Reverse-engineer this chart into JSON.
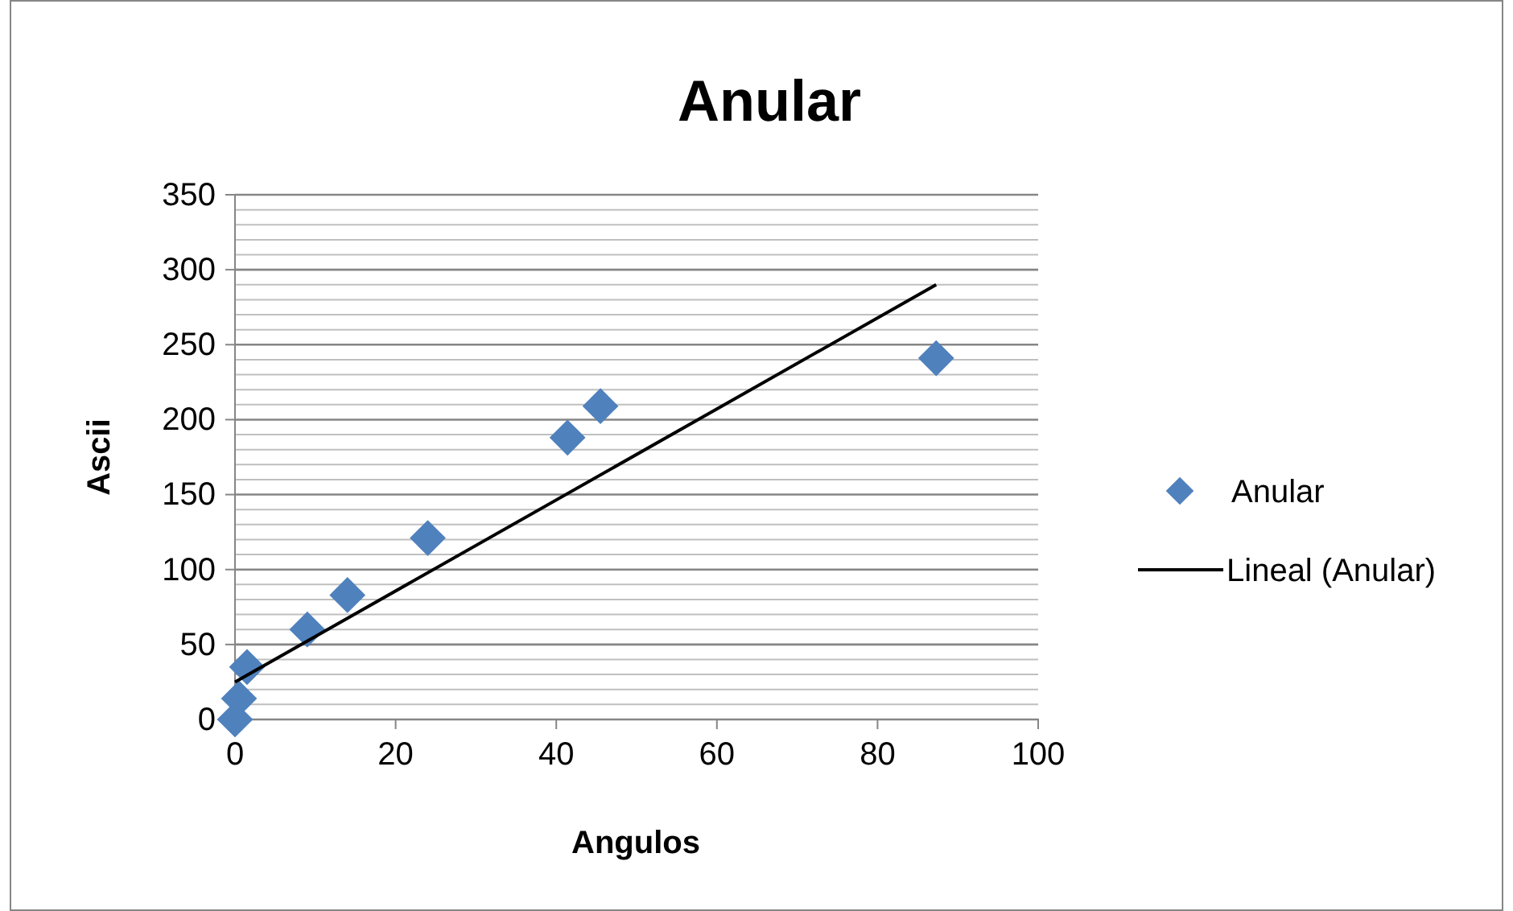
{
  "chart_data": {
    "type": "scatter",
    "title": "Anular",
    "xlabel": "Angulos",
    "ylabel": "Ascii",
    "xlim": [
      0,
      100
    ],
    "xticks": [
      0,
      20,
      40,
      60,
      80,
      100
    ],
    "ylim": [
      0,
      350
    ],
    "yticks": [
      0,
      {
        "value": 10,
        "label": null
      },
      {
        "value": 20,
        "label": null
      },
      {
        "value": 30,
        "label": null
      },
      {
        "value": 40,
        "label": null
      },
      50,
      {
        "value": 60,
        "label": null
      },
      {
        "value": 70,
        "label": null
      },
      {
        "value": 80,
        "label": null
      },
      {
        "value": 90,
        "label": null
      },
      100,
      {
        "value": 110,
        "label": null
      },
      {
        "value": 120,
        "label": null
      },
      {
        "value": 130,
        "label": null
      },
      {
        "value": 140,
        "label": null
      },
      150,
      {
        "value": 160,
        "label": null
      },
      {
        "value": 170,
        "label": null
      },
      {
        "value": 180,
        "label": null
      },
      {
        "value": 190,
        "label": null
      },
      200,
      {
        "value": 210,
        "label": null
      },
      {
        "value": 220,
        "label": null
      },
      {
        "value": 230,
        "label": null
      },
      {
        "value": 240,
        "label": null
      },
      250,
      {
        "value": 260,
        "label": null
      },
      {
        "value": 270,
        "label": null
      },
      {
        "value": 280,
        "label": null
      },
      {
        "value": 290,
        "label": null
      },
      300,
      {
        "value": 310,
        "label": null
      },
      {
        "value": 320,
        "label": null
      },
      {
        "value": 330,
        "label": null
      },
      {
        "value": 340,
        "label": null
      },
      350
    ],
    "grid": "y",
    "legend": "right",
    "series": [
      {
        "name": "Anular",
        "color": "#4f81bd",
        "marker": "diamond",
        "x": [
          0,
          0.5,
          1.5,
          9,
          14,
          24,
          41.4,
          45.5,
          87.3
        ],
        "values": [
          0,
          14,
          35,
          60,
          83,
          121,
          188,
          209,
          241
        ]
      },
      {
        "name": "Lineal (Anular)",
        "type": "line",
        "color": "#000000",
        "marker": "none",
        "line_style": "solid",
        "x": [
          0,
          87.3
        ],
        "values": [
          25,
          290
        ]
      }
    ]
  }
}
